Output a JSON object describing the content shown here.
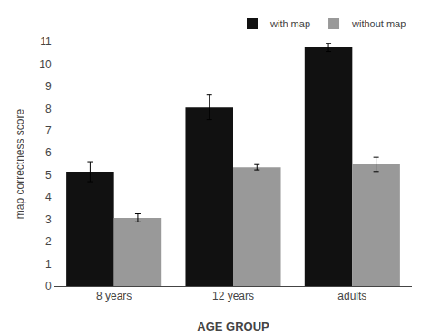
{
  "chart_data": {
    "type": "bar",
    "categories": [
      "8 years",
      "12 years",
      "adults"
    ],
    "series": [
      {
        "name": "with map",
        "color": "#111111",
        "values": [
          5.15,
          8.05,
          10.75
        ],
        "errors": [
          0.45,
          0.55,
          0.18
        ]
      },
      {
        "name": "without map",
        "color": "#999999",
        "values": [
          3.07,
          5.35,
          5.48
        ],
        "errors": [
          0.18,
          0.12,
          0.32
        ]
      }
    ],
    "xlabel": "AGE GROUP",
    "ylabel": "map correctness score",
    "ylim": [
      0,
      11
    ],
    "yticks": [
      0,
      1,
      2,
      3,
      4,
      5,
      6,
      7,
      8,
      9,
      10,
      11
    ],
    "grid": false,
    "legend": "upper right"
  }
}
